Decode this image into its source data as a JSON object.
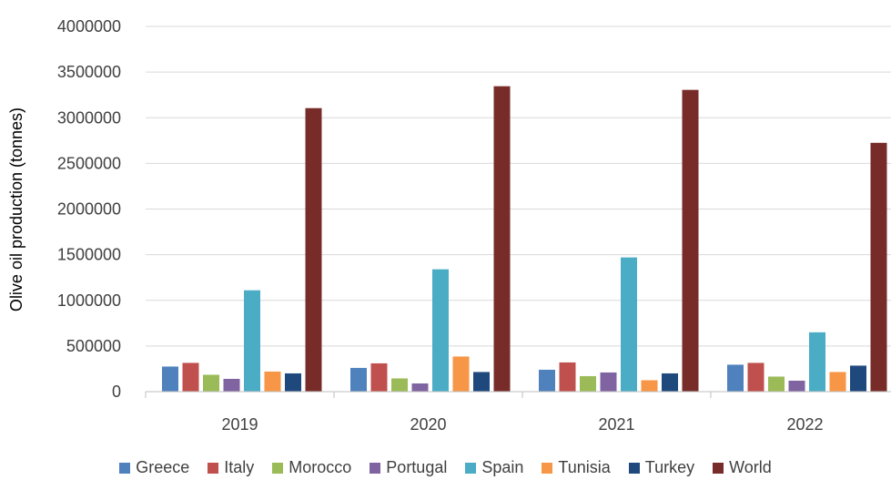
{
  "chart_data": {
    "type": "bar",
    "title": "",
    "xlabel": "",
    "ylabel": "Olive oil production (tonnes)",
    "ylim": [
      0,
      4000000
    ],
    "yticks": [
      0,
      500000,
      1000000,
      1500000,
      2000000,
      2500000,
      3000000,
      3500000,
      4000000
    ],
    "ytick_labels": [
      "0",
      "500000",
      "1000000",
      "1500000",
      "2000000",
      "2500000",
      "3000000",
      "3500000",
      "4000000"
    ],
    "grid": true,
    "legend_position": "bottom",
    "categories": [
      "2019",
      "2020",
      "2021",
      "2022"
    ],
    "series": [
      {
        "name": "Greece",
        "color": "#4f81bd",
        "values": [
          275000,
          260000,
          240000,
          295000
        ]
      },
      {
        "name": "Italy",
        "color": "#c0504d",
        "values": [
          315000,
          310000,
          320000,
          315000
        ]
      },
      {
        "name": "Morocco",
        "color": "#9bbb59",
        "values": [
          185000,
          145000,
          170000,
          165000
        ]
      },
      {
        "name": "Portugal",
        "color": "#8064a2",
        "values": [
          140000,
          90000,
          210000,
          120000
        ]
      },
      {
        "name": "Spain",
        "color": "#4bacc6",
        "values": [
          1110000,
          1340000,
          1470000,
          650000
        ]
      },
      {
        "name": "Tunisia",
        "color": "#f79646",
        "values": [
          220000,
          385000,
          125000,
          215000
        ]
      },
      {
        "name": "Turkey",
        "color": "#1f497d",
        "values": [
          200000,
          215000,
          200000,
          285000
        ]
      },
      {
        "name": "World",
        "color": "#772c2a",
        "values": [
          3105000,
          3345000,
          3305000,
          2725000
        ]
      }
    ]
  }
}
